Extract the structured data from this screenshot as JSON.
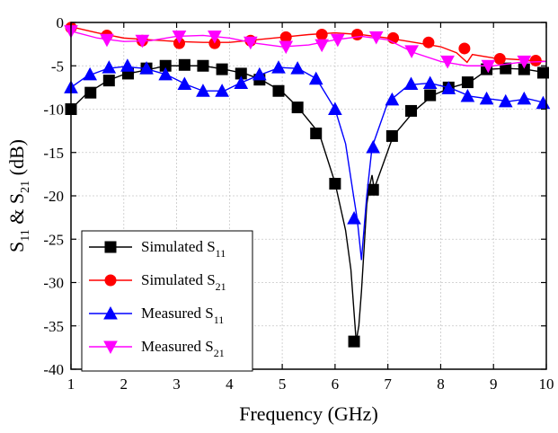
{
  "chart_data": {
    "type": "line",
    "xlabel": "Frequency (GHz)",
    "ylabel": {
      "main": "S",
      "sub1": "11",
      "mid": " & S",
      "sub2": "21",
      "unit": " (dB)"
    },
    "xlim": [
      1,
      10
    ],
    "ylim": [
      -40,
      0
    ],
    "xticks": [
      1,
      2,
      3,
      4,
      5,
      6,
      7,
      8,
      9,
      10
    ],
    "yticks": [
      0,
      -5,
      -10,
      -15,
      -20,
      -25,
      -30,
      -35,
      -40
    ],
    "grid": true,
    "legend_position": "bottom-left",
    "series": [
      {
        "name": "Simulated S",
        "name_sub": "11",
        "color": "#000000",
        "marker": "square",
        "line": [
          [
            1.0,
            -10.0
          ],
          [
            1.3,
            -8.2
          ],
          [
            1.7,
            -6.7
          ],
          [
            2.0,
            -6.0
          ],
          [
            2.5,
            -5.4
          ],
          [
            2.8,
            -5.0
          ],
          [
            3.2,
            -5.0
          ],
          [
            3.5,
            -5.0
          ],
          [
            3.9,
            -5.4
          ],
          [
            4.3,
            -5.9
          ],
          [
            4.6,
            -6.6
          ],
          [
            5.0,
            -8.0
          ],
          [
            5.3,
            -9.8
          ],
          [
            5.7,
            -12.8
          ],
          [
            6.0,
            -18.5
          ],
          [
            6.2,
            -24.0
          ],
          [
            6.3,
            -28.5
          ],
          [
            6.4,
            -36.8
          ],
          [
            6.45,
            -35.0
          ],
          [
            6.5,
            -31.0
          ],
          [
            6.55,
            -26.0
          ],
          [
            6.6,
            -21.0
          ],
          [
            6.65,
            -19.0
          ],
          [
            6.7,
            -17.6
          ],
          [
            6.74,
            -19.2
          ],
          [
            6.9,
            -16.5
          ],
          [
            7.1,
            -13.1
          ],
          [
            7.5,
            -10.2
          ],
          [
            7.85,
            -8.4
          ],
          [
            8.2,
            -7.5
          ],
          [
            8.55,
            -6.9
          ],
          [
            8.9,
            -5.4
          ],
          [
            9.25,
            -5.3
          ],
          [
            9.6,
            -5.4
          ],
          [
            10.0,
            -5.8
          ]
        ],
        "markers": [
          [
            1.0,
            -10.0
          ],
          [
            1.37,
            -8.1
          ],
          [
            1.72,
            -6.7
          ],
          [
            2.08,
            -5.9
          ],
          [
            2.43,
            -5.3
          ],
          [
            2.79,
            -5.0
          ],
          [
            3.15,
            -4.9
          ],
          [
            3.5,
            -5.0
          ],
          [
            3.86,
            -5.4
          ],
          [
            4.22,
            -5.9
          ],
          [
            4.57,
            -6.6
          ],
          [
            4.93,
            -7.9
          ],
          [
            5.29,
            -9.8
          ],
          [
            5.64,
            -12.8
          ],
          [
            6.0,
            -18.6
          ],
          [
            6.36,
            -36.8
          ],
          [
            6.72,
            -19.3
          ],
          [
            7.08,
            -13.1
          ],
          [
            7.44,
            -10.2
          ],
          [
            7.8,
            -8.4
          ],
          [
            8.15,
            -7.5
          ],
          [
            8.51,
            -6.9
          ],
          [
            8.87,
            -5.4
          ],
          [
            9.23,
            -5.3
          ],
          [
            9.58,
            -5.4
          ],
          [
            9.94,
            -5.8
          ]
        ]
      },
      {
        "name": "Simulated S",
        "name_sub": "21",
        "color": "#ff0000",
        "marker": "circle",
        "line": [
          [
            1.0,
            -0.5
          ],
          [
            1.5,
            -1.2
          ],
          [
            2.0,
            -1.8
          ],
          [
            2.5,
            -2.0
          ],
          [
            3.0,
            -2.2
          ],
          [
            3.5,
            -2.3
          ],
          [
            4.0,
            -2.3
          ],
          [
            4.5,
            -2.0
          ],
          [
            5.0,
            -1.7
          ],
          [
            5.5,
            -1.4
          ],
          [
            6.0,
            -1.2
          ],
          [
            6.5,
            -1.4
          ],
          [
            7.0,
            -1.8
          ],
          [
            7.5,
            -2.3
          ],
          [
            8.0,
            -2.8
          ],
          [
            8.3,
            -3.5
          ],
          [
            8.5,
            -4.6
          ],
          [
            8.6,
            -3.7
          ],
          [
            9.0,
            -4.1
          ],
          [
            9.5,
            -4.3
          ],
          [
            10.0,
            -4.5
          ]
        ],
        "markers": [
          [
            1.0,
            -0.6
          ],
          [
            1.68,
            -1.5
          ],
          [
            2.35,
            -2.1
          ],
          [
            3.05,
            -2.4
          ],
          [
            3.72,
            -2.4
          ],
          [
            4.4,
            -2.1
          ],
          [
            5.07,
            -1.7
          ],
          [
            5.75,
            -1.4
          ],
          [
            6.42,
            -1.4
          ],
          [
            7.1,
            -1.8
          ],
          [
            7.77,
            -2.3
          ],
          [
            8.45,
            -3.0
          ],
          [
            9.12,
            -4.2
          ],
          [
            9.8,
            -4.4
          ]
        ]
      },
      {
        "name": "Measured S",
        "name_sub": "11",
        "color": "#0000ff",
        "marker": "triangle-up",
        "line": [
          [
            1.0,
            -7.5
          ],
          [
            1.3,
            -6.2
          ],
          [
            1.7,
            -5.3
          ],
          [
            2.0,
            -5.1
          ],
          [
            2.4,
            -5.3
          ],
          [
            2.8,
            -6.0
          ],
          [
            3.2,
            -7.2
          ],
          [
            3.5,
            -7.9
          ],
          [
            3.9,
            -7.9
          ],
          [
            4.2,
            -7.0
          ],
          [
            4.6,
            -6.0
          ],
          [
            4.95,
            -5.2
          ],
          [
            5.3,
            -5.3
          ],
          [
            5.65,
            -6.5
          ],
          [
            6.0,
            -10.0
          ],
          [
            6.2,
            -14.0
          ],
          [
            6.35,
            -20.0
          ],
          [
            6.42,
            -22.7
          ],
          [
            6.5,
            -27.4
          ],
          [
            6.6,
            -20.0
          ],
          [
            6.7,
            -14.4
          ],
          [
            7.0,
            -9.2
          ],
          [
            7.4,
            -7.2
          ],
          [
            7.8,
            -7.0
          ],
          [
            8.2,
            -7.6
          ],
          [
            8.55,
            -8.5
          ],
          [
            8.9,
            -8.8
          ],
          [
            9.3,
            -9.1
          ],
          [
            9.65,
            -8.8
          ],
          [
            10.0,
            -9.3
          ]
        ],
        "markers": [
          [
            1.0,
            -7.5
          ],
          [
            1.36,
            -6.0
          ],
          [
            1.72,
            -5.2
          ],
          [
            2.07,
            -5.0
          ],
          [
            2.43,
            -5.3
          ],
          [
            2.79,
            -6.0
          ],
          [
            3.15,
            -7.1
          ],
          [
            3.5,
            -7.9
          ],
          [
            3.86,
            -7.9
          ],
          [
            4.22,
            -7.0
          ],
          [
            4.57,
            -6.0
          ],
          [
            4.93,
            -5.2
          ],
          [
            5.29,
            -5.3
          ],
          [
            5.64,
            -6.5
          ],
          [
            6.0,
            -10.0
          ],
          [
            6.36,
            -22.6
          ],
          [
            6.72,
            -14.4
          ],
          [
            7.08,
            -8.9
          ],
          [
            7.44,
            -7.1
          ],
          [
            7.8,
            -7.0
          ],
          [
            8.15,
            -7.6
          ],
          [
            8.51,
            -8.5
          ],
          [
            8.87,
            -8.8
          ],
          [
            9.23,
            -9.1
          ],
          [
            9.58,
            -8.8
          ],
          [
            9.94,
            -9.3
          ]
        ]
      },
      {
        "name": "Measured S",
        "name_sub": "21",
        "color": "#ff00ff",
        "marker": "triangle-down",
        "line": [
          [
            1.0,
            -1.0
          ],
          [
            1.5,
            -1.8
          ],
          [
            2.0,
            -2.2
          ],
          [
            2.5,
            -2.1
          ],
          [
            3.0,
            -1.6
          ],
          [
            3.5,
            -1.5
          ],
          [
            4.0,
            -1.8
          ],
          [
            4.5,
            -2.4
          ],
          [
            5.0,
            -2.8
          ],
          [
            5.5,
            -2.6
          ],
          [
            6.0,
            -2.0
          ],
          [
            6.5,
            -1.6
          ],
          [
            7.0,
            -2.0
          ],
          [
            7.5,
            -3.5
          ],
          [
            8.0,
            -4.5
          ],
          [
            8.5,
            -5.0
          ],
          [
            9.0,
            -5.0
          ],
          [
            9.5,
            -4.6
          ],
          [
            10.0,
            -4.5
          ]
        ],
        "markers": [
          [
            1.0,
            -1.0
          ],
          [
            1.68,
            -2.0
          ],
          [
            2.35,
            -2.1
          ],
          [
            3.05,
            -1.6
          ],
          [
            3.72,
            -1.6
          ],
          [
            4.4,
            -2.3
          ],
          [
            5.07,
            -2.8
          ],
          [
            5.75,
            -2.6
          ],
          [
            6.05,
            -2.0
          ],
          [
            6.78,
            -1.7
          ],
          [
            7.45,
            -3.3
          ],
          [
            8.13,
            -4.5
          ],
          [
            8.9,
            -5.0
          ],
          [
            9.58,
            -4.5
          ]
        ]
      }
    ]
  }
}
